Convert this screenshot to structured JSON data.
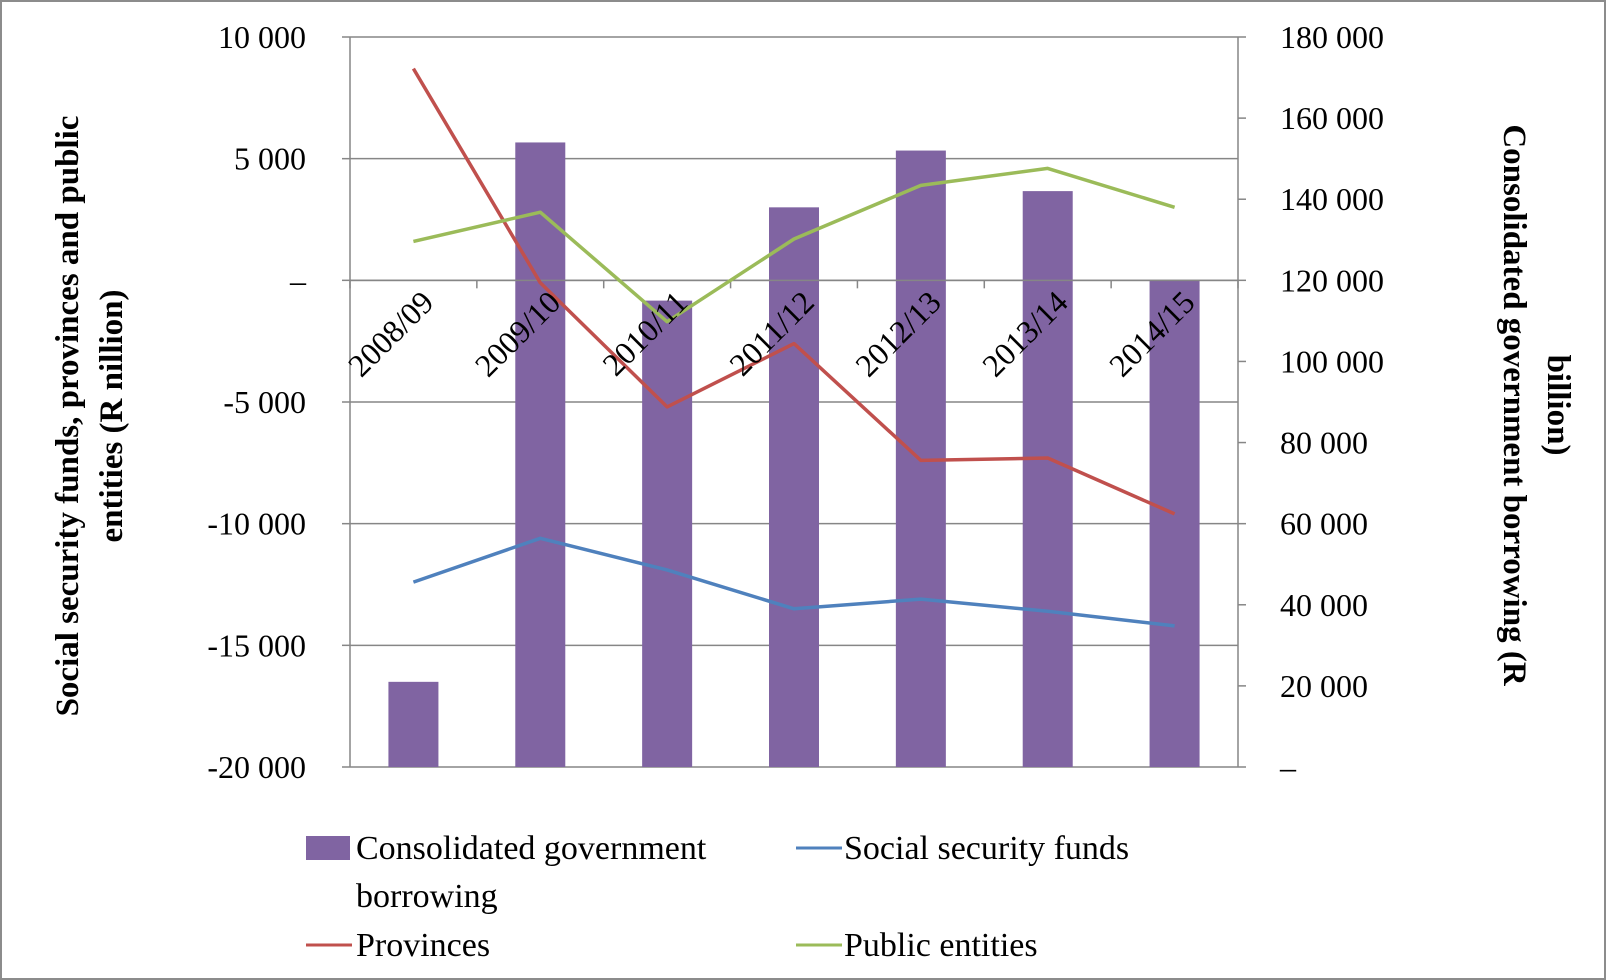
{
  "chart_data": {
    "type": "bar",
    "title": "",
    "categories": [
      "2008/09",
      "2009/10",
      "2010/11",
      "2011/12",
      "2012/13",
      "2013/14",
      "2014/15"
    ],
    "left_axis": {
      "label_line1": "Social security funds, provinces and public",
      "label_line2": "entities (R nillion)",
      "ylim": [
        -20000,
        10000
      ],
      "ticks": [
        10000,
        5000,
        0,
        -5000,
        -10000,
        -15000,
        -20000
      ],
      "tick_labels": [
        "10 000",
        "5 000",
        "–",
        "-5 000",
        "-10 000",
        "-15 000",
        "-20 000"
      ]
    },
    "right_axis": {
      "label_line1": "Consolidated government borrowing (R",
      "label_line2": "billion)",
      "ylim": [
        0,
        180000
      ],
      "ticks": [
        180000,
        160000,
        140000,
        120000,
        100000,
        80000,
        60000,
        40000,
        20000,
        0
      ],
      "tick_labels": [
        "180 000",
        "160 000",
        "140 000",
        "120 000",
        "100 000",
        "80 000",
        "60 000",
        "40 000",
        "20 000",
        "–"
      ]
    },
    "series": [
      {
        "name": "Consolidated government borrowing",
        "type": "bar",
        "axis": "right",
        "color": "#8064a2",
        "values": [
          21000,
          154000,
          115000,
          138000,
          152000,
          142000,
          120000
        ]
      },
      {
        "name": "Social security funds",
        "type": "line",
        "axis": "left",
        "color": "#4f81bd",
        "values": [
          -12400,
          -10600,
          -11900,
          -13500,
          -13100,
          -13600,
          -14200
        ]
      },
      {
        "name": "Provinces",
        "type": "line",
        "axis": "left",
        "color": "#c0504d",
        "values": [
          8700,
          -100,
          -5200,
          -2600,
          -7400,
          -7300,
          -9600
        ]
      },
      {
        "name": "Public entities",
        "type": "line",
        "axis": "left",
        "color": "#9bbb59",
        "values": [
          1600,
          2800,
          -1700,
          1700,
          3900,
          4600,
          3000
        ]
      }
    ],
    "grid": true,
    "legend_position": "bottom"
  },
  "legend": {
    "bar_label_line1": "Consolidated government",
    "bar_label_line2": "borrowing",
    "social_label": "Social security funds",
    "provinces_label": "Provinces",
    "public_label": "Public entities"
  }
}
